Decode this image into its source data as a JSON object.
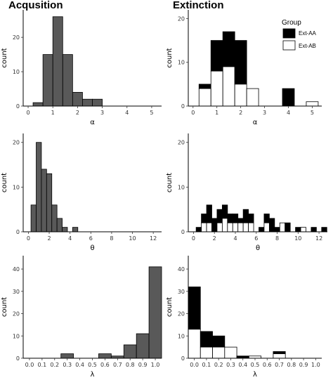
{
  "column_titles": [
    "Acqusition",
    "Extinction"
  ],
  "legend": {
    "title": "Group",
    "items": [
      {
        "label": "Ext-AA",
        "color": "#000000"
      },
      {
        "label": "Ext-AB",
        "color": "#ffffff"
      }
    ]
  },
  "colors": {
    "acq_fill": "#595959",
    "outline": "#000000"
  },
  "chart_data": [
    {
      "id": "acq-alpha",
      "type": "bar",
      "title": "Acqusition",
      "xlabel": "α",
      "ylabel": "count",
      "xlim": [
        -0.2,
        5.4
      ],
      "ylim": [
        0,
        28
      ],
      "xticks": [
        0,
        1,
        2,
        3,
        4,
        5
      ],
      "yticks": [
        0,
        10,
        20
      ],
      "bin_width": 0.4,
      "series": [
        {
          "name": "",
          "x": [
            0.4,
            0.8,
            1.2,
            1.6,
            2.0,
            2.4,
            2.8,
            3.2
          ],
          "values": [
            1,
            15,
            26,
            15,
            4,
            2,
            2,
            0
          ]
        }
      ]
    },
    {
      "id": "ext-alpha",
      "type": "bar",
      "stacked": true,
      "title": "Extinction",
      "xlabel": "α",
      "ylabel": "count",
      "xlim": [
        -0.2,
        5.4
      ],
      "ylim": [
        0,
        22
      ],
      "xticks": [
        0,
        1,
        2,
        3,
        4,
        5
      ],
      "yticks": [
        0,
        10,
        20
      ],
      "bin_width": 0.5,
      "x": [
        0.5,
        1.0,
        1.5,
        2.0,
        2.5,
        3.0,
        3.5,
        4.0,
        4.5,
        5.0
      ],
      "series": [
        {
          "name": "Ext-AB",
          "values": [
            4,
            8,
            9,
            5,
            4,
            0,
            0,
            0,
            0,
            1
          ]
        },
        {
          "name": "Ext-AA",
          "values": [
            1,
            7,
            8,
            10,
            0,
            0,
            0,
            4,
            0,
            0
          ]
        }
      ]
    },
    {
      "id": "acq-theta",
      "type": "bar",
      "xlabel": "θ",
      "ylabel": "count",
      "xlim": [
        -0.5,
        12.8
      ],
      "ylim": [
        0,
        22
      ],
      "xticks": [
        0,
        2,
        4,
        6,
        8,
        10,
        12
      ],
      "yticks": [
        0,
        10,
        20
      ],
      "bin_width": 0.5,
      "series": [
        {
          "name": "",
          "x": [
            0.5,
            1.0,
            1.5,
            2.0,
            2.5,
            3.0,
            3.5,
            4.0,
            4.5
          ],
          "values": [
            6,
            20,
            14,
            13,
            6,
            3,
            1,
            0,
            1
          ]
        }
      ]
    },
    {
      "id": "ext-theta",
      "type": "bar",
      "stacked": true,
      "xlabel": "θ",
      "ylabel": "count",
      "xlim": [
        -0.5,
        12.8
      ],
      "ylim": [
        0,
        22
      ],
      "xticks": [
        0,
        2,
        4,
        6,
        8,
        10,
        12
      ],
      "yticks": [
        0,
        10,
        20
      ],
      "bin_width": 0.5,
      "x": [
        0.5,
        1.0,
        1.5,
        2.0,
        2.5,
        3.0,
        3.5,
        4.0,
        4.5,
        5.0,
        5.5,
        6.0,
        6.5,
        7.0,
        7.5,
        8.0,
        8.5,
        9.0,
        9.5,
        10.0,
        10.5,
        11.0,
        11.5,
        12.0,
        12.5
      ],
      "series": [
        {
          "name": "Ext-AB",
          "values": [
            0,
            2,
            2,
            0,
            2,
            3,
            2,
            2,
            2,
            2,
            2,
            0,
            0,
            2,
            0,
            0,
            2,
            0,
            0,
            0,
            1,
            0,
            0,
            0,
            0
          ]
        },
        {
          "name": "Ext-AA",
          "values": [
            1,
            2,
            4,
            3,
            3,
            3,
            2,
            2,
            1,
            3,
            2,
            0,
            1,
            2,
            3,
            1,
            0,
            2,
            0,
            1,
            0,
            0,
            1,
            0,
            1
          ]
        }
      ]
    },
    {
      "id": "acq-lambda",
      "type": "bar",
      "xlabel": "λ",
      "ylabel": "count",
      "xlim": [
        -0.05,
        1.05
      ],
      "ylim": [
        0,
        46
      ],
      "xticks": [
        0.0,
        0.1,
        0.2,
        0.3,
        0.4,
        0.5,
        0.6,
        0.7,
        0.8,
        0.9,
        1.0
      ],
      "yticks": [
        0,
        10,
        20,
        30,
        40
      ],
      "bin_width": 0.1,
      "series": [
        {
          "name": "",
          "x": [
            0.0,
            0.1,
            0.2,
            0.3,
            0.4,
            0.5,
            0.6,
            0.7,
            0.8,
            0.9,
            1.0
          ],
          "values": [
            0,
            0,
            0,
            2,
            0,
            0,
            2,
            1,
            6,
            11,
            41
          ]
        }
      ]
    },
    {
      "id": "ext-lambda",
      "type": "bar",
      "stacked": true,
      "xlabel": "λ",
      "ylabel": "count",
      "xlim": [
        -0.05,
        1.05
      ],
      "ylim": [
        0,
        46
      ],
      "xticks": [
        0.0,
        0.1,
        0.2,
        0.3,
        0.4,
        0.5,
        0.6,
        0.7,
        0.8,
        0.9,
        1.0
      ],
      "yticks": [
        0,
        10,
        20,
        30,
        40
      ],
      "bin_width": 0.1,
      "x": [
        0.0,
        0.1,
        0.2,
        0.3,
        0.4,
        0.5,
        0.6,
        0.7
      ],
      "series": [
        {
          "name": "Ext-AB",
          "values": [
            13,
            5,
            5,
            5,
            0,
            1,
            0,
            2
          ]
        },
        {
          "name": "Ext-AA",
          "values": [
            19,
            7,
            5,
            0,
            1,
            0,
            0,
            1
          ]
        }
      ]
    }
  ]
}
